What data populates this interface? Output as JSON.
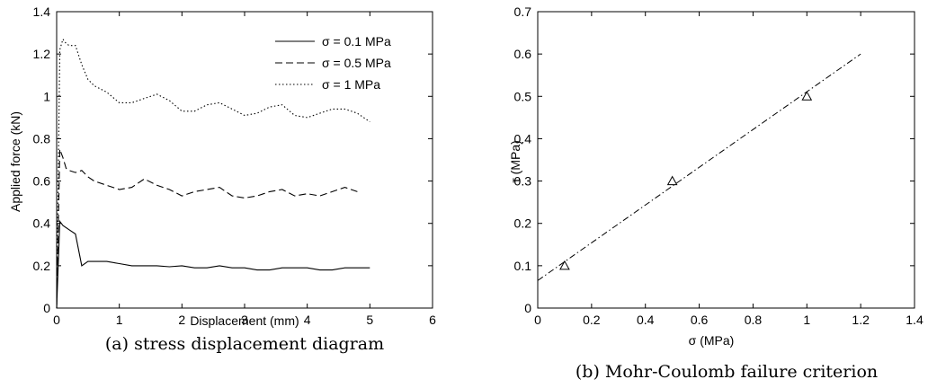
{
  "chart_data": [
    {
      "type": "line",
      "caption": "(a) stress displacement diagram",
      "xlabel": "Displacement (mm)",
      "ylabel": "Applied force (kN)",
      "xlim": [
        0,
        6
      ],
      "ylim": [
        0,
        1.4
      ],
      "xticks": [
        0,
        1,
        2,
        3,
        4,
        5,
        6
      ],
      "yticks": [
        0,
        0.2,
        0.4,
        0.6,
        0.8,
        1,
        1.2,
        1.4
      ],
      "ytick_labels": [
        "0",
        "0.2",
        "0.4",
        "0.6",
        "0.8",
        "1",
        "1.2",
        "1.4"
      ],
      "legend_position": "top-right",
      "series": [
        {
          "name": "σ = 0.1 MPa",
          "style": "solid",
          "x": [
            0,
            0.05,
            0.1,
            0.2,
            0.3,
            0.4,
            0.5,
            0.6,
            0.8,
            1.0,
            1.2,
            1.4,
            1.6,
            1.8,
            2.0,
            2.2,
            2.4,
            2.6,
            2.8,
            3.0,
            3.2,
            3.4,
            3.6,
            3.8,
            4.0,
            4.2,
            4.4,
            4.6,
            4.8,
            5.0
          ],
          "y": [
            0.0,
            0.41,
            0.39,
            0.37,
            0.35,
            0.2,
            0.22,
            0.22,
            0.22,
            0.21,
            0.2,
            0.2,
            0.2,
            0.195,
            0.2,
            0.19,
            0.19,
            0.2,
            0.19,
            0.19,
            0.18,
            0.18,
            0.19,
            0.19,
            0.19,
            0.18,
            0.18,
            0.19,
            0.19,
            0.19
          ]
        },
        {
          "name": "σ = 0.5 MPa",
          "style": "dashed",
          "x": [
            0,
            0.05,
            0.1,
            0.15,
            0.2,
            0.3,
            0.4,
            0.5,
            0.6,
            0.8,
            1.0,
            1.2,
            1.4,
            1.6,
            1.8,
            2.0,
            2.2,
            2.4,
            2.6,
            2.8,
            3.0,
            3.2,
            3.4,
            3.6,
            3.8,
            4.0,
            4.2,
            4.4,
            4.6,
            4.8
          ],
          "y": [
            0.0,
            0.75,
            0.71,
            0.66,
            0.65,
            0.64,
            0.65,
            0.62,
            0.6,
            0.58,
            0.56,
            0.57,
            0.61,
            0.58,
            0.56,
            0.53,
            0.55,
            0.56,
            0.57,
            0.53,
            0.52,
            0.53,
            0.55,
            0.56,
            0.53,
            0.54,
            0.53,
            0.55,
            0.57,
            0.55
          ]
        },
        {
          "name": "σ = 1 MPa",
          "style": "dotted",
          "x": [
            0,
            0.05,
            0.1,
            0.15,
            0.2,
            0.3,
            0.4,
            0.5,
            0.6,
            0.8,
            1.0,
            1.2,
            1.4,
            1.6,
            1.8,
            2.0,
            2.2,
            2.4,
            2.6,
            2.8,
            3.0,
            3.2,
            3.4,
            3.6,
            3.8,
            4.0,
            4.2,
            4.4,
            4.6,
            4.8,
            5.0
          ],
          "y": [
            0.0,
            1.22,
            1.27,
            1.25,
            1.24,
            1.24,
            1.15,
            1.08,
            1.05,
            1.02,
            0.97,
            0.97,
            0.99,
            1.01,
            0.98,
            0.93,
            0.93,
            0.96,
            0.97,
            0.94,
            0.91,
            0.92,
            0.95,
            0.96,
            0.91,
            0.9,
            0.92,
            0.94,
            0.94,
            0.92,
            0.88
          ]
        }
      ]
    },
    {
      "type": "scatter",
      "caption": "(b) Mohr-Coulomb failure criterion",
      "xlabel": "σ (MPa)",
      "ylabel": "τ (MPa)",
      "xlim": [
        0,
        1.4
      ],
      "ylim": [
        0,
        0.7
      ],
      "xticks": [
        0,
        0.2,
        0.4,
        0.6,
        0.8,
        1,
        1.2,
        1.4
      ],
      "xtick_labels": [
        "0",
        "0.2",
        "0.4",
        "0.6",
        "0.8",
        "1",
        "1.2",
        "1.4"
      ],
      "yticks": [
        0,
        0.1,
        0.2,
        0.3,
        0.4,
        0.5,
        0.6,
        0.7
      ],
      "ytick_labels": [
        "0",
        "0.1",
        "0.2",
        "0.3",
        "0.4",
        "0.5",
        "0.6",
        "0.7"
      ],
      "points": {
        "marker": "triangle",
        "x": [
          0.1,
          0.5,
          1.0
        ],
        "y": [
          0.1,
          0.3,
          0.5
        ]
      },
      "fit_line": {
        "style": "dash-dot",
        "x": [
          0,
          1.2
        ],
        "y": [
          0.065,
          0.6
        ]
      }
    }
  ]
}
